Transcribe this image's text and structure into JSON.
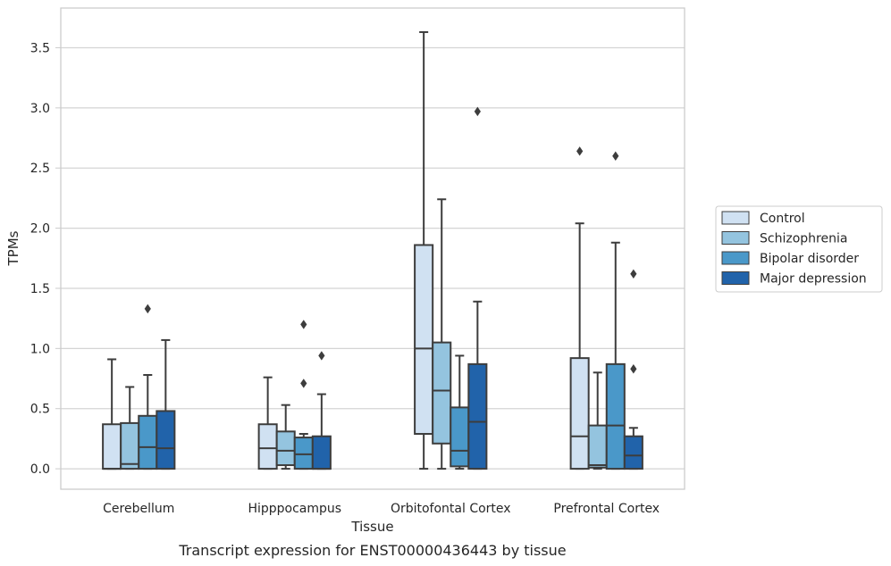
{
  "caption": "Transcript expression for ENST00000436443 by tissue",
  "chart_data": {
    "type": "boxplot",
    "xlabel": "Tissue",
    "ylabel": "TPMs",
    "ylim": [
      -0.17,
      3.83
    ],
    "yticks": [
      0.0,
      0.5,
      1.0,
      1.5,
      2.0,
      2.5,
      3.0,
      3.5
    ],
    "ytick_labels": [
      "0.0",
      "0.5",
      "1.0",
      "1.5",
      "2.0",
      "2.5",
      "3.0",
      "3.5"
    ],
    "grid": "horizontal",
    "legend_position": "right",
    "categories": [
      "Cerebellum",
      "Hipppocampus",
      "Orbitofontal Cortex",
      "Prefrontal Cortex"
    ],
    "series": [
      {
        "name": "Control",
        "color": "#d0e1f2",
        "boxes": [
          {
            "whislo": 0.0,
            "q1": 0.0,
            "med": 0.0,
            "q3": 0.37,
            "whishi": 0.91,
            "fliers": []
          },
          {
            "whislo": 0.0,
            "q1": 0.0,
            "med": 0.17,
            "q3": 0.37,
            "whishi": 0.76,
            "fliers": []
          },
          {
            "whislo": 0.0,
            "q1": 0.29,
            "med": 1.0,
            "q3": 1.86,
            "whishi": 3.63,
            "fliers": []
          },
          {
            "whislo": 0.0,
            "q1": 0.0,
            "med": 0.27,
            "q3": 0.92,
            "whishi": 2.04,
            "fliers": [
              2.64
            ]
          }
        ]
      },
      {
        "name": "Schizophrenia",
        "color": "#94c4df",
        "boxes": [
          {
            "whislo": 0.0,
            "q1": 0.0,
            "med": 0.04,
            "q3": 0.38,
            "whishi": 0.68,
            "fliers": []
          },
          {
            "whislo": 0.0,
            "q1": 0.03,
            "med": 0.15,
            "q3": 0.31,
            "whishi": 0.53,
            "fliers": []
          },
          {
            "whislo": 0.0,
            "q1": 0.21,
            "med": 0.65,
            "q3": 1.05,
            "whishi": 2.24,
            "fliers": []
          },
          {
            "whislo": 0.0,
            "q1": 0.01,
            "med": 0.03,
            "q3": 0.36,
            "whishi": 0.8,
            "fliers": []
          }
        ]
      },
      {
        "name": "Bipolar disorder",
        "color": "#4a98c9",
        "boxes": [
          {
            "whislo": 0.0,
            "q1": 0.0,
            "med": 0.18,
            "q3": 0.44,
            "whishi": 0.78,
            "fliers": [
              1.33
            ]
          },
          {
            "whislo": 0.0,
            "q1": 0.0,
            "med": 0.12,
            "q3": 0.26,
            "whishi": 0.29,
            "fliers": [
              0.71,
              1.2
            ]
          },
          {
            "whislo": 0.0,
            "q1": 0.02,
            "med": 0.15,
            "q3": 0.51,
            "whishi": 0.94,
            "fliers": []
          },
          {
            "whislo": 0.0,
            "q1": 0.0,
            "med": 0.36,
            "q3": 0.87,
            "whishi": 1.88,
            "fliers": [
              2.6
            ]
          }
        ]
      },
      {
        "name": "Major depression",
        "color": "#2163aa",
        "boxes": [
          {
            "whislo": 0.0,
            "q1": 0.0,
            "med": 0.17,
            "q3": 0.48,
            "whishi": 1.07,
            "fliers": []
          },
          {
            "whislo": 0.0,
            "q1": 0.0,
            "med": 0.0,
            "q3": 0.27,
            "whishi": 0.62,
            "fliers": [
              0.94
            ]
          },
          {
            "whislo": 0.0,
            "q1": 0.0,
            "med": 0.39,
            "q3": 0.87,
            "whishi": 1.39,
            "fliers": [
              2.97
            ]
          },
          {
            "whislo": 0.0,
            "q1": 0.0,
            "med": 0.11,
            "q3": 0.27,
            "whishi": 0.34,
            "fliers": [
              0.83,
              1.62
            ]
          }
        ]
      }
    ]
  }
}
